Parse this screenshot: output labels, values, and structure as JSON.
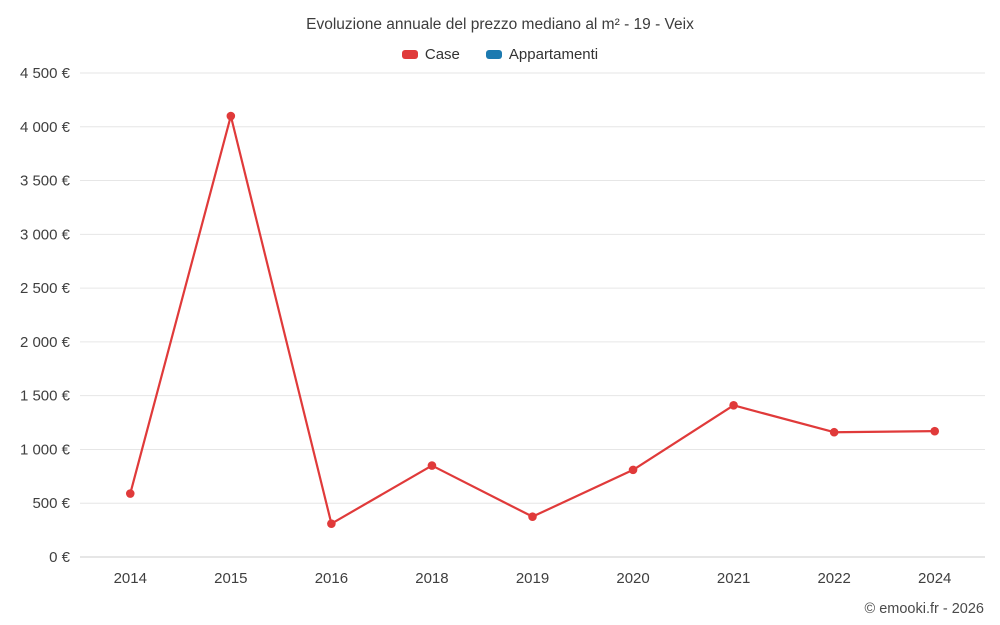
{
  "chart_data": {
    "type": "line",
    "title": "Evoluzione annuale del prezzo mediano al m² - 19 - Veix",
    "categories": [
      "2014",
      "2015",
      "2016",
      "2018",
      "2019",
      "2020",
      "2021",
      "2022",
      "2024"
    ],
    "series": [
      {
        "name": "Case",
        "color": "#e03a3a",
        "values": [
          590,
          4100,
          310,
          850,
          375,
          810,
          1410,
          1160,
          1170
        ]
      },
      {
        "name": "Appartamenti",
        "color": "#1c7ab0",
        "values": []
      }
    ],
    "ylim": [
      0,
      4500
    ],
    "ytick_step": 500,
    "ytick_labels": [
      "0 €",
      "500 €",
      "1 000 €",
      "1 500 €",
      "2 000 €",
      "2 500 €",
      "3 000 €",
      "3 500 €",
      "4 000 €",
      "4 500 €"
    ],
    "grid": true,
    "legend_position": "top",
    "gridline_color": "#e6e6e6",
    "axis_line_color": "#cccccc",
    "watermark": "© emooki.fr - 2026"
  }
}
